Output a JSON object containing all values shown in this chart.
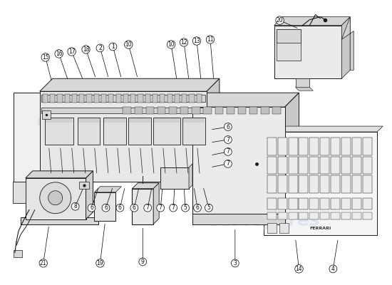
{
  "background_color": "#ffffff",
  "watermark_color": "#c8d4e8",
  "watermark_text": "eurospares",
  "line_color": "#1a1a1a",
  "fig_width": 5.5,
  "fig_height": 4.0,
  "dpi": 100
}
